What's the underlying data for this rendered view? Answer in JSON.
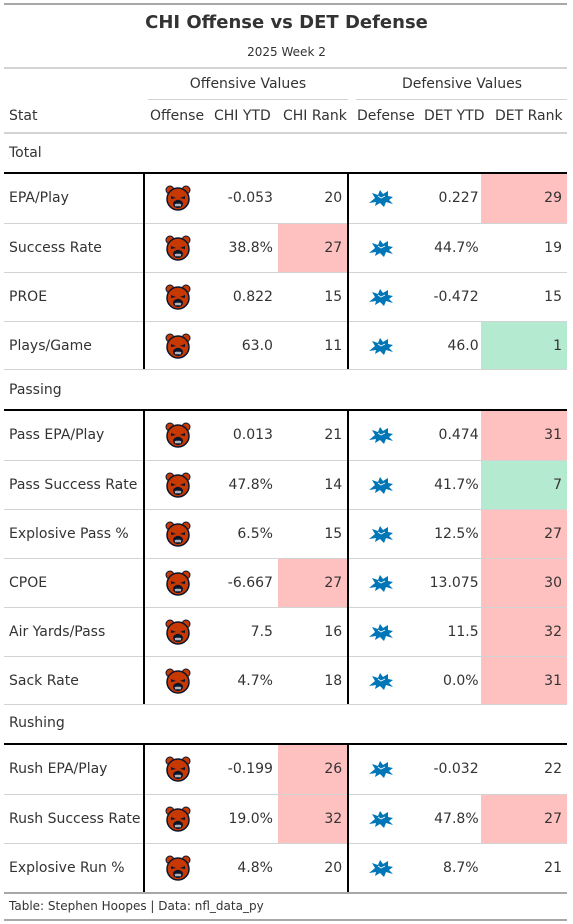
{
  "title": "CHI Offense vs DET Defense",
  "subtitle": "2025 Week 2",
  "spanners": {
    "offense": "Offensive Values",
    "defense": "Defensive Values"
  },
  "columns": {
    "stat": "Stat",
    "offense": "Offense",
    "chi_ytd": "CHI YTD",
    "chi_rank": "CHI Rank",
    "defense": "Defense",
    "det_ytd": "DET YTD",
    "det_rank": "DET Rank"
  },
  "colors": {
    "bad": "#ffc0c0",
    "good": "#b3ead0",
    "bears_orange": "#c83803",
    "bears_navy": "#0b162a",
    "lions_blue": "#0076b6"
  },
  "icons": {
    "offense": "chicago-bears-logo-icon",
    "defense": "detroit-lions-logo-icon"
  },
  "groups": [
    {
      "label": "Total",
      "rows": [
        {
          "stat": "EPA/Play",
          "chi_ytd": "-0.053",
          "chi_rank": "20",
          "chi_highlight": "",
          "det_ytd": "0.227",
          "det_rank": "29",
          "det_highlight": "bad"
        },
        {
          "stat": "Success Rate",
          "chi_ytd": "38.8%",
          "chi_rank": "27",
          "chi_highlight": "bad",
          "det_ytd": "44.7%",
          "det_rank": "19",
          "det_highlight": ""
        },
        {
          "stat": "PROE",
          "chi_ytd": "0.822",
          "chi_rank": "15",
          "chi_highlight": "",
          "det_ytd": "-0.472",
          "det_rank": "15",
          "det_highlight": ""
        },
        {
          "stat": "Plays/Game",
          "chi_ytd": "63.0",
          "chi_rank": "11",
          "chi_highlight": "",
          "det_ytd": "46.0",
          "det_rank": "1",
          "det_highlight": "good"
        }
      ]
    },
    {
      "label": "Passing",
      "rows": [
        {
          "stat": "Pass EPA/Play",
          "chi_ytd": "0.013",
          "chi_rank": "21",
          "chi_highlight": "",
          "det_ytd": "0.474",
          "det_rank": "31",
          "det_highlight": "bad"
        },
        {
          "stat": "Pass Success Rate",
          "chi_ytd": "47.8%",
          "chi_rank": "14",
          "chi_highlight": "",
          "det_ytd": "41.7%",
          "det_rank": "7",
          "det_highlight": "good"
        },
        {
          "stat": "Explosive Pass %",
          "chi_ytd": "6.5%",
          "chi_rank": "15",
          "chi_highlight": "",
          "det_ytd": "12.5%",
          "det_rank": "27",
          "det_highlight": "bad"
        },
        {
          "stat": "CPOE",
          "chi_ytd": "-6.667",
          "chi_rank": "27",
          "chi_highlight": "bad",
          "det_ytd": "13.075",
          "det_rank": "30",
          "det_highlight": "bad"
        },
        {
          "stat": "Air Yards/Pass",
          "chi_ytd": "7.5",
          "chi_rank": "16",
          "chi_highlight": "",
          "det_ytd": "11.5",
          "det_rank": "32",
          "det_highlight": "bad"
        },
        {
          "stat": "Sack Rate",
          "chi_ytd": "4.7%",
          "chi_rank": "18",
          "chi_highlight": "",
          "det_ytd": "0.0%",
          "det_rank": "31",
          "det_highlight": "bad"
        }
      ]
    },
    {
      "label": "Rushing",
      "rows": [
        {
          "stat": "Rush EPA/Play",
          "chi_ytd": "-0.199",
          "chi_rank": "26",
          "chi_highlight": "bad",
          "det_ytd": "-0.032",
          "det_rank": "22",
          "det_highlight": ""
        },
        {
          "stat": "Rush Success Rate",
          "chi_ytd": "19.0%",
          "chi_rank": "32",
          "chi_highlight": "bad",
          "det_ytd": "47.8%",
          "det_rank": "27",
          "det_highlight": "bad"
        },
        {
          "stat": "Explosive Run %",
          "chi_ytd": "4.8%",
          "chi_rank": "20",
          "chi_highlight": "",
          "det_ytd": "8.7%",
          "det_rank": "21",
          "det_highlight": ""
        }
      ]
    }
  ],
  "caption": "Table: Stephen Hoopes | Data: nfl_data_py"
}
